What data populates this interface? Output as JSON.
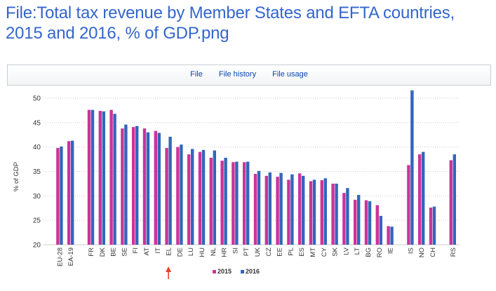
{
  "page": {
    "title": "File:Total tax revenue by Member States and EFTA countries, 2015 and 2016, % of GDP.png"
  },
  "file_tabs": [
    {
      "label": "File"
    },
    {
      "label": "File history"
    },
    {
      "label": "File usage"
    }
  ],
  "colors": {
    "series_2015": "#cc3399",
    "series_2016": "#3366bb",
    "grid": "#cccccc",
    "marker_arrow": "#e8412c"
  },
  "chart_data": {
    "type": "bar",
    "title": "",
    "xlabel": "",
    "ylabel": "% of GDP",
    "ylim": [
      20,
      50
    ],
    "yticks": [
      20,
      25,
      30,
      35,
      40,
      45,
      50
    ],
    "grid": true,
    "legend_position": "bottom",
    "annotation": {
      "type": "arrow",
      "points_to": "EL"
    },
    "categories": [
      "EU-28",
      "EA-19",
      "FR",
      "DK",
      "BE",
      "SE",
      "FI",
      "AT",
      "IT",
      "EL",
      "DE",
      "LU",
      "HU",
      "NL",
      "HR",
      "SI",
      "PT",
      "UK",
      "CZ",
      "EE",
      "PL",
      "ES",
      "MT",
      "CY",
      "SK",
      "LV",
      "LT",
      "BG",
      "RO",
      "IE",
      "IS",
      "NO",
      "CH",
      "RS"
    ],
    "groups": [
      2,
      28,
      3,
      1
    ],
    "series": [
      {
        "name": "2015",
        "color": "#cc3399",
        "values": [
          39.8,
          41.2,
          47.6,
          47.4,
          47.6,
          43.8,
          44.1,
          43.8,
          43.3,
          39.8,
          40.0,
          38.5,
          39.0,
          37.8,
          37.2,
          36.9,
          36.9,
          34.5,
          34.1,
          33.9,
          33.3,
          34.6,
          33.0,
          33.2,
          32.5,
          30.6,
          29.2,
          29.1,
          28.1,
          23.8,
          36.3,
          38.5,
          27.6,
          37.3
        ]
      },
      {
        "name": "2016",
        "color": "#3366bb",
        "values": [
          40.1,
          41.3,
          47.6,
          47.3,
          46.8,
          44.6,
          44.3,
          43.0,
          42.9,
          42.1,
          40.5,
          39.6,
          39.4,
          39.3,
          37.8,
          37.0,
          37.0,
          35.1,
          34.8,
          34.7,
          34.4,
          34.1,
          33.3,
          33.6,
          32.5,
          31.6,
          30.2,
          28.9,
          25.9,
          23.7,
          51.6,
          39.0,
          27.8,
          38.5
        ]
      }
    ]
  }
}
